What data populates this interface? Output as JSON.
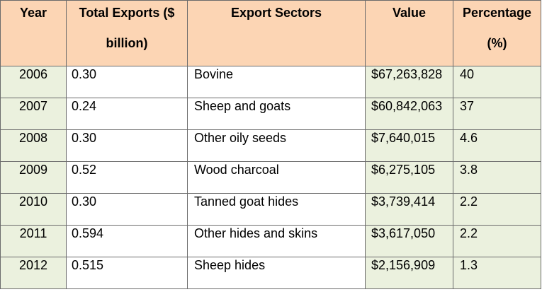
{
  "headers": {
    "year": "Year",
    "total_exports_line1": "Total Exports ($",
    "total_exports_line2": "billion)",
    "export_sectors": "Export Sectors",
    "value": "Value",
    "percentage_line1": "Percentage",
    "percentage_line2": "(%)"
  },
  "rows": [
    {
      "year": "2006",
      "total": "0.30",
      "sector": "Bovine",
      "value": "$67,263,828",
      "pct": "40"
    },
    {
      "year": "2007",
      "total": "0.24",
      "sector": "Sheep and goats",
      "value": "$60,842,063",
      "pct": "37"
    },
    {
      "year": "2008",
      "total": "0.30",
      "sector": "Other oily seeds",
      "value": "$7,640,015",
      "pct": "4.6"
    },
    {
      "year": "2009",
      "total": "0.52",
      "sector": "Wood charcoal",
      "value": "$6,275,105",
      "pct": "3.8"
    },
    {
      "year": "2010",
      "total": "0.30",
      "sector": "Tanned goat hides",
      "value": "$3,739,414",
      "pct": "2.2"
    },
    {
      "year": "2011",
      "total": "0.594",
      "sector": "Other hides and skins",
      "value": "$3,617,050",
      "pct": "2.2"
    },
    {
      "year": "2012",
      "total": "0.515",
      "sector": "Sheep hides",
      "value": "$2,156,909",
      "pct": "1.3"
    }
  ],
  "colors": {
    "header_bg": "#fcd5b4",
    "shaded_cell_bg": "#ebf1de",
    "plain_cell_bg": "#ffffff",
    "border": "#6b6b6b"
  }
}
